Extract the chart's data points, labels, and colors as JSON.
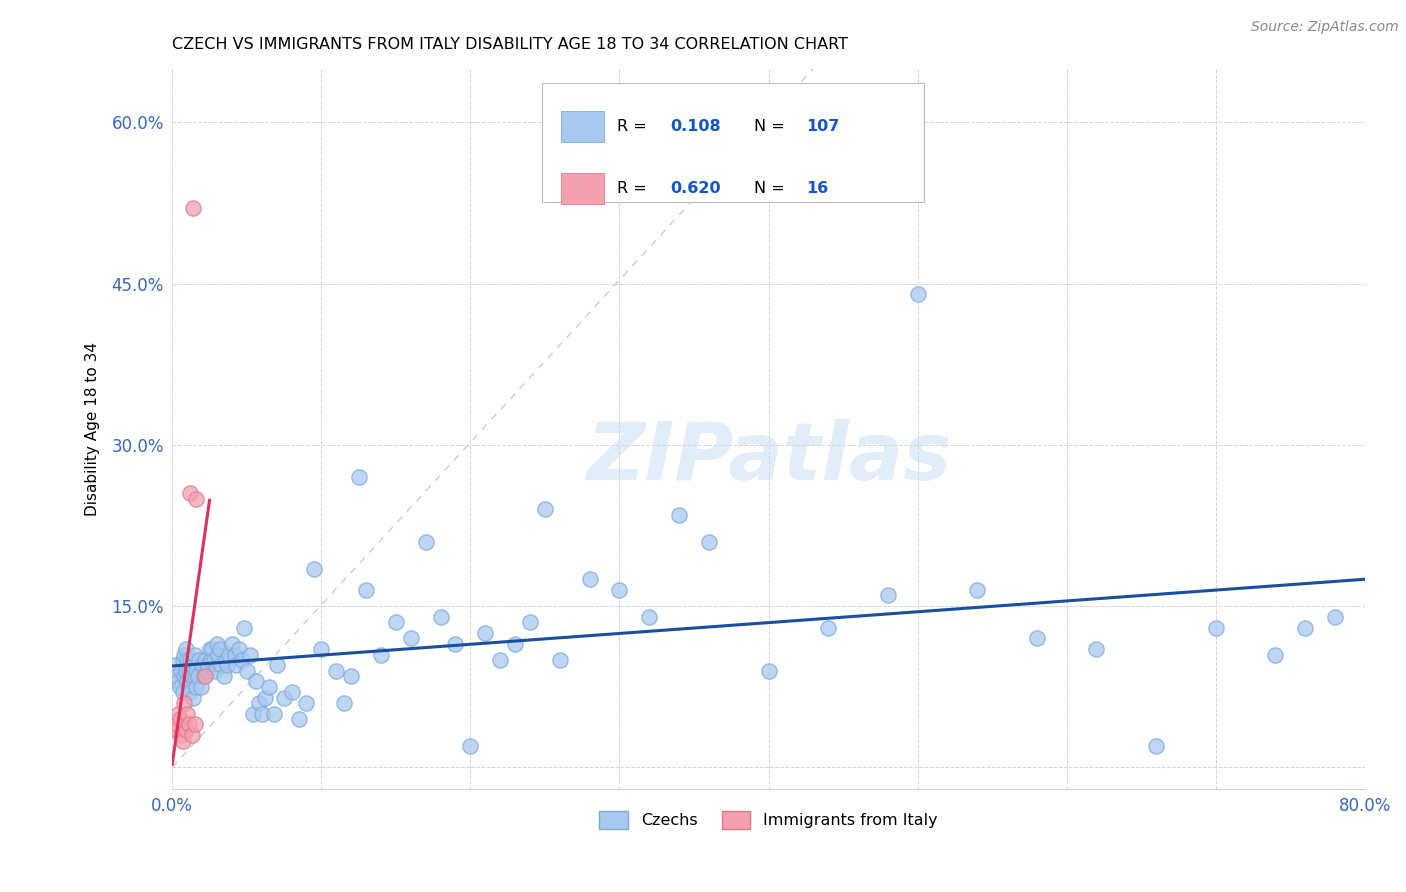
{
  "title": "CZECH VS IMMIGRANTS FROM ITALY DISABILITY AGE 18 TO 34 CORRELATION CHART",
  "source": "Source: ZipAtlas.com",
  "ylabel": "Disability Age 18 to 34",
  "xlim": [
    0.0,
    0.8
  ],
  "ylim": [
    -0.02,
    0.65
  ],
  "xticks": [
    0.0,
    0.1,
    0.2,
    0.3,
    0.4,
    0.5,
    0.6,
    0.7,
    0.8
  ],
  "xticklabels": [
    "0.0%",
    "",
    "",
    "",
    "",
    "",
    "",
    "",
    "80.0%"
  ],
  "yticks": [
    0.0,
    0.15,
    0.3,
    0.45,
    0.6
  ],
  "yticklabels": [
    "",
    "15.0%",
    "30.0%",
    "45.0%",
    "60.0%"
  ],
  "czech_color": "#a8c8f0",
  "czech_edge": "#7aacd8",
  "italy_color": "#f4a0b0",
  "italy_edge": "#e07888",
  "trend_czech_color": "#1a4fa0",
  "trend_italy_color": "#e03060",
  "ref_line_color": "#cccccc",
  "watermark": "ZIPatlas",
  "czechs_x": [
    0.002,
    0.003,
    0.004,
    0.005,
    0.006,
    0.007,
    0.007,
    0.008,
    0.008,
    0.009,
    0.009,
    0.01,
    0.01,
    0.011,
    0.011,
    0.012,
    0.012,
    0.013,
    0.013,
    0.014,
    0.014,
    0.015,
    0.015,
    0.016,
    0.016,
    0.017,
    0.018,
    0.019,
    0.02,
    0.021,
    0.022,
    0.023,
    0.024,
    0.025,
    0.026,
    0.027,
    0.028,
    0.029,
    0.03,
    0.031,
    0.032,
    0.033,
    0.035,
    0.036,
    0.037,
    0.038,
    0.04,
    0.042,
    0.043,
    0.045,
    0.047,
    0.048,
    0.05,
    0.052,
    0.054,
    0.056,
    0.058,
    0.06,
    0.062,
    0.065,
    0.068,
    0.07,
    0.075,
    0.08,
    0.085,
    0.09,
    0.095,
    0.1,
    0.11,
    0.115,
    0.12,
    0.125,
    0.13,
    0.14,
    0.15,
    0.16,
    0.17,
    0.18,
    0.19,
    0.2,
    0.21,
    0.22,
    0.23,
    0.24,
    0.25,
    0.26,
    0.28,
    0.3,
    0.32,
    0.34,
    0.36,
    0.4,
    0.44,
    0.48,
    0.5,
    0.54,
    0.58,
    0.62,
    0.66,
    0.7,
    0.74,
    0.76,
    0.78
  ],
  "czechs_y": [
    0.095,
    0.085,
    0.08,
    0.075,
    0.09,
    0.1,
    0.07,
    0.085,
    0.105,
    0.09,
    0.11,
    0.08,
    0.1,
    0.075,
    0.09,
    0.1,
    0.07,
    0.085,
    0.095,
    0.1,
    0.065,
    0.085,
    0.105,
    0.075,
    0.09,
    0.085,
    0.1,
    0.075,
    0.095,
    0.085,
    0.1,
    0.09,
    0.095,
    0.11,
    0.1,
    0.11,
    0.1,
    0.09,
    0.115,
    0.105,
    0.11,
    0.095,
    0.085,
    0.1,
    0.095,
    0.105,
    0.115,
    0.105,
    0.095,
    0.11,
    0.1,
    0.13,
    0.09,
    0.105,
    0.05,
    0.08,
    0.06,
    0.05,
    0.065,
    0.075,
    0.05,
    0.095,
    0.065,
    0.07,
    0.045,
    0.06,
    0.185,
    0.11,
    0.09,
    0.06,
    0.085,
    0.27,
    0.165,
    0.105,
    0.135,
    0.12,
    0.21,
    0.14,
    0.115,
    0.02,
    0.125,
    0.1,
    0.115,
    0.135,
    0.24,
    0.1,
    0.175,
    0.165,
    0.14,
    0.235,
    0.21,
    0.09,
    0.13,
    0.16,
    0.44,
    0.165,
    0.12,
    0.11,
    0.02,
    0.13,
    0.105,
    0.13,
    0.14
  ],
  "italy_x": [
    0.002,
    0.003,
    0.004,
    0.005,
    0.006,
    0.007,
    0.008,
    0.009,
    0.01,
    0.011,
    0.012,
    0.013,
    0.014,
    0.015,
    0.016,
    0.022
  ],
  "italy_y": [
    0.035,
    0.04,
    0.05,
    0.045,
    0.03,
    0.025,
    0.06,
    0.035,
    0.05,
    0.04,
    0.255,
    0.03,
    0.52,
    0.04,
    0.25,
    0.085
  ]
}
